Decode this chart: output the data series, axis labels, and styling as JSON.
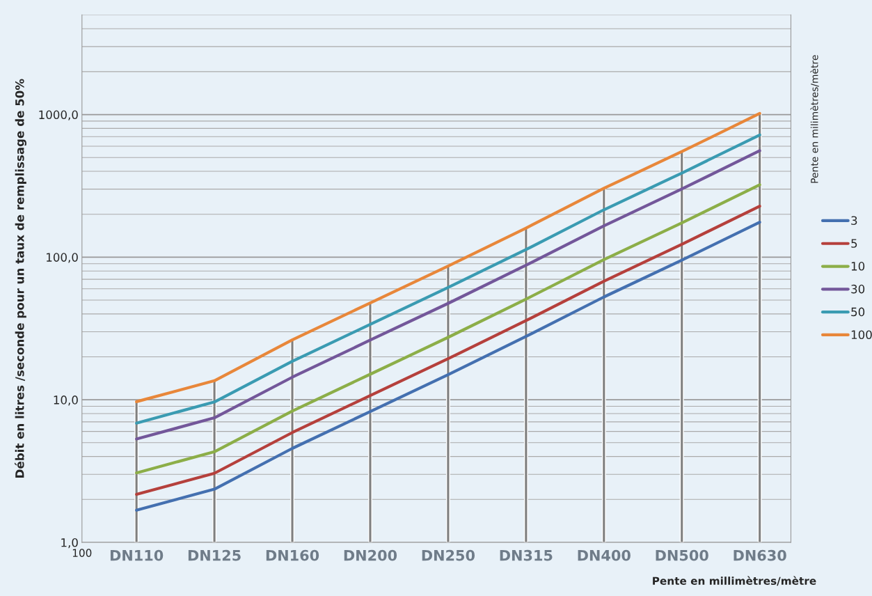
{
  "chart_data": {
    "type": "line",
    "ylabel": "Débit en litres /seconde pour un taux de remplissage de 50%",
    "xlabel": "Pente en millimètres/mètre",
    "legend_title": "Pente en milimètres/mètre",
    "categories": [
      "DN110",
      "DN125",
      "DN160",
      "DN200",
      "DN250",
      "DN315",
      "DN400",
      "DN500",
      "DN630"
    ],
    "annotations": [
      "100"
    ],
    "series": [
      {
        "type": "bar",
        "color": "#7f7f7f",
        "values": [
          9.7,
          13.6,
          26.3,
          47.8,
          86.6,
          160,
          304,
          550,
          1019
        ]
      },
      {
        "name": "3",
        "color": "#4470b0",
        "values": [
          1.68,
          2.36,
          4.56,
          8.27,
          15.0,
          27.8,
          52.6,
          95.3,
          176
        ]
      },
      {
        "name": "5",
        "color": "#b5403c",
        "values": [
          2.17,
          3.05,
          5.89,
          10.7,
          19.4,
          35.9,
          67.9,
          123,
          228
        ]
      },
      {
        "name": "10",
        "color": "#8cae48",
        "values": [
          3.07,
          4.32,
          8.34,
          15.1,
          27.4,
          50.8,
          96.1,
          174,
          322
        ]
      },
      {
        "name": "30",
        "color": "#73579a",
        "values": [
          5.31,
          7.47,
          14.4,
          26.2,
          47.4,
          87.8,
          166,
          301,
          558
        ]
      },
      {
        "name": "50",
        "color": "#3a9bb2",
        "values": [
          6.86,
          9.65,
          18.6,
          33.8,
          61.3,
          113,
          215,
          389,
          720
        ]
      },
      {
        "name": "100",
        "color": "#e8873a",
        "values": [
          9.7,
          13.6,
          26.3,
          47.8,
          86.6,
          160,
          304,
          550,
          1019
        ]
      }
    ],
    "log": "y",
    "ylim": [
      1,
      5000
    ],
    "yticks": [
      {
        "value": 1,
        "label": "1,0"
      },
      {
        "value": 10,
        "label": "10,0"
      },
      {
        "value": 100,
        "label": "100,0"
      },
      {
        "value": 1000,
        "label": "1000,0"
      }
    ],
    "grid": "y",
    "legend": "right",
    "marker": "none",
    "line_style": "solid"
  }
}
